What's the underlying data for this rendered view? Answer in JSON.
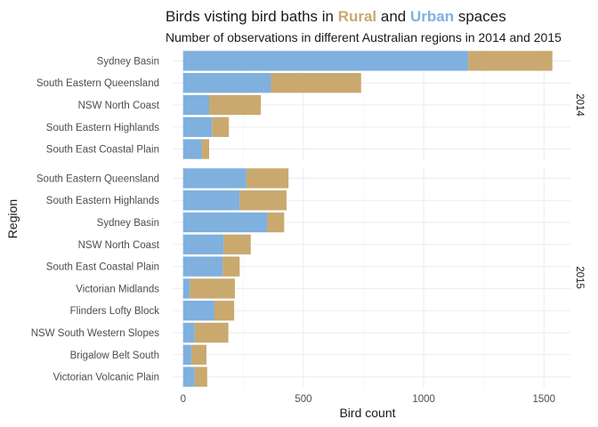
{
  "chart_data": {
    "type": "bar",
    "orientation": "horizontal",
    "stacked": true,
    "title_parts": [
      {
        "text": "Birds visting bird baths in ",
        "bold": false,
        "color": "#1a1a1a"
      },
      {
        "text": "Rural",
        "bold": true,
        "color": "#c9a96e"
      },
      {
        "text": " and ",
        "bold": false,
        "color": "#1a1a1a"
      },
      {
        "text": "Urban",
        "bold": true,
        "color": "#7fb0de"
      },
      {
        "text": " spaces",
        "bold": false,
        "color": "#1a1a1a"
      }
    ],
    "subtitle": "Number of observations in different Australian regions in 2014 and 2015",
    "xlabel": "Bird count",
    "ylabel": "Region",
    "xlim": [
      -40,
      1610
    ],
    "xticks": [
      "0",
      "500",
      "1000",
      "1500"
    ],
    "xtick_values": [
      0,
      500,
      1000,
      1500
    ],
    "grid": true,
    "legend": "none",
    "colors": {
      "Urban": "#7fb0de",
      "Rural": "#c9a96e"
    },
    "stack_order": [
      "Urban",
      "Rural"
    ],
    "panels": [
      {
        "strip": "2014",
        "categories": [
          "Sydney Basin",
          "South Eastern Queensland",
          "NSW North Coast",
          "South Eastern Highlands",
          "South East Coastal Plain"
        ],
        "urban": [
          1185,
          365,
          108,
          120,
          78
        ],
        "rural": [
          350,
          375,
          215,
          70,
          30
        ]
      },
      {
        "strip": "2015",
        "categories": [
          "South Eastern Queensland",
          "South Eastern Highlands",
          "Sydney Basin",
          "NSW North Coast",
          "South East Coastal Plain",
          "Victorian Midlands",
          "Flinders Lofty Block",
          "NSW South Western Slopes",
          "Brigalow Belt South",
          "Victorian Volcanic Plain"
        ],
        "urban": [
          263,
          235,
          350,
          168,
          165,
          28,
          130,
          48,
          35,
          48
        ],
        "rural": [
          175,
          195,
          70,
          113,
          70,
          187,
          82,
          140,
          62,
          52
        ]
      }
    ]
  }
}
